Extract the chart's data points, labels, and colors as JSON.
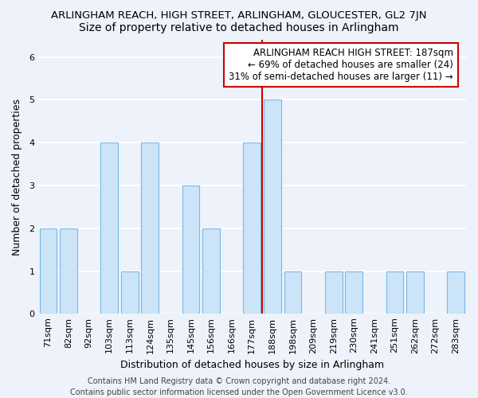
{
  "title": "ARLINGHAM REACH, HIGH STREET, ARLINGHAM, GLOUCESTER, GL2 7JN",
  "subtitle": "Size of property relative to detached houses in Arlingham",
  "xlabel": "Distribution of detached houses by size in Arlingham",
  "ylabel": "Number of detached properties",
  "categories": [
    "71sqm",
    "82sqm",
    "92sqm",
    "103sqm",
    "113sqm",
    "124sqm",
    "135sqm",
    "145sqm",
    "156sqm",
    "166sqm",
    "177sqm",
    "188sqm",
    "198sqm",
    "209sqm",
    "219sqm",
    "230sqm",
    "241sqm",
    "251sqm",
    "262sqm",
    "272sqm",
    "283sqm"
  ],
  "values": [
    2,
    2,
    0,
    4,
    1,
    4,
    0,
    3,
    2,
    0,
    4,
    5,
    1,
    0,
    1,
    1,
    0,
    1,
    1,
    0,
    1
  ],
  "bar_color": "#cce4f7",
  "bar_edge_color": "#7ab8e8",
  "vline_index": 11,
  "vline_color": "#cc0000",
  "annotation_title": "ARLINGHAM REACH HIGH STREET: 187sqm",
  "annotation_line1": "← 69% of detached houses are smaller (24)",
  "annotation_line2": "31% of semi-detached houses are larger (11) →",
  "annotation_box_color": "#ffffff",
  "annotation_box_edge": "#cc0000",
  "ylim": [
    0,
    6.4
  ],
  "yticks": [
    0,
    1,
    2,
    3,
    4,
    5,
    6
  ],
  "footer": "Contains HM Land Registry data © Crown copyright and database right 2024.\nContains public sector information licensed under the Open Government Licence v3.0.",
  "bg_color": "#eef2fa",
  "grid_color": "#ffffff",
  "title_fontsize": 9.5,
  "subtitle_fontsize": 10,
  "axis_fontsize": 9,
  "tick_fontsize": 8,
  "annotation_fontsize": 8.5,
  "footer_fontsize": 7
}
